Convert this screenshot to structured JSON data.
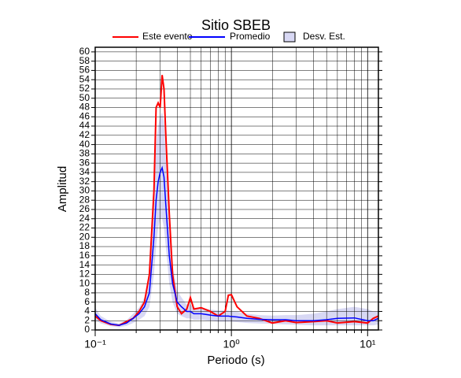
{
  "chart_data": {
    "type": "line",
    "title": "Sitio SBEB",
    "x_label": "Periodo (s)",
    "y_label": "Amplitud",
    "log_x": true,
    "grid": true,
    "xlim": [
      0.1,
      12
    ],
    "ylim": [
      0,
      61
    ],
    "xticks": [
      {
        "value": 0.1,
        "label": "10⁻¹"
      },
      {
        "value": 1,
        "label": "10⁰"
      },
      {
        "value": 10,
        "label": "10¹"
      }
    ],
    "x_minor_ticks": [
      0.2,
      0.3,
      0.4,
      0.5,
      0.6,
      0.7,
      0.8,
      0.9,
      2,
      3,
      4,
      5,
      6,
      7,
      8,
      9
    ],
    "yticks": [
      0,
      2,
      4,
      6,
      8,
      10,
      12,
      14,
      16,
      18,
      20,
      22,
      24,
      26,
      28,
      30,
      32,
      34,
      36,
      38,
      40,
      42,
      44,
      46,
      48,
      50,
      52,
      54,
      56,
      58,
      60
    ],
    "x": [
      0.1,
      0.11,
      0.13,
      0.15,
      0.17,
      0.19,
      0.21,
      0.23,
      0.25,
      0.27,
      0.28,
      0.29,
      0.3,
      0.31,
      0.32,
      0.33,
      0.35,
      0.37,
      0.4,
      0.43,
      0.47,
      0.5,
      0.53,
      0.6,
      0.7,
      0.8,
      0.9,
      0.95,
      1.0,
      1.1,
      1.3,
      1.6,
      2,
      2.5,
      3,
      4,
      5,
      6,
      8,
      10,
      11,
      12
    ],
    "series": [
      {
        "name": "Este evento",
        "color": "#ff0000",
        "values": [
          3,
          2,
          1.2,
          1.0,
          1.8,
          2.5,
          4,
          6,
          12,
          30,
          48,
          49,
          48,
          55,
          52,
          42,
          25,
          12,
          5,
          3.5,
          4.5,
          7,
          4.5,
          4.8,
          4,
          3,
          4,
          7.5,
          7.6,
          5,
          3,
          2.5,
          1.5,
          2,
          1.6,
          1.8,
          2,
          1.5,
          1.8,
          1.5,
          2.5,
          3
        ]
      },
      {
        "name": "Promedio",
        "color": "#0000ff",
        "values": [
          3.5,
          2.2,
          1.3,
          1.0,
          1.5,
          2.5,
          3.5,
          5,
          8,
          20,
          28,
          32,
          34,
          35,
          33,
          27,
          16,
          10,
          6,
          5,
          4,
          4,
          3.5,
          3.5,
          3.2,
          3,
          3,
          3,
          2.9,
          2.8,
          2.5,
          2.3,
          2.2,
          2.2,
          2,
          2,
          2.2,
          2.5,
          2.6,
          2,
          2,
          2.5
        ]
      }
    ],
    "band": {
      "name": "Desv. Est.",
      "color": "#d8d8f4",
      "lower": [
        2.2,
        1.4,
        0.8,
        0.6,
        0.9,
        1.5,
        2.2,
        3,
        5,
        12,
        18,
        22,
        24,
        24,
        22,
        18,
        10,
        6,
        3.5,
        3,
        2.5,
        2.5,
        2.2,
        2.2,
        2,
        1.8,
        1.8,
        1.8,
        1.8,
        1.7,
        1.5,
        1.4,
        1.3,
        1.2,
        1.1,
        1,
        1,
        1,
        1,
        1,
        1,
        1.2
      ],
      "upper": [
        4.8,
        3,
        1.8,
        1.4,
        2.1,
        3.5,
        4.8,
        7,
        11,
        28,
        40,
        44,
        46,
        47,
        45,
        37,
        22,
        14,
        8.5,
        7,
        5.5,
        5.5,
        4.8,
        4.8,
        4.4,
        4.2,
        4.2,
        4.2,
        4,
        3.9,
        3.5,
        3.2,
        3.1,
        3.2,
        3.2,
        3.5,
        4,
        4.5,
        5,
        4.5,
        4,
        4
      ]
    }
  }
}
